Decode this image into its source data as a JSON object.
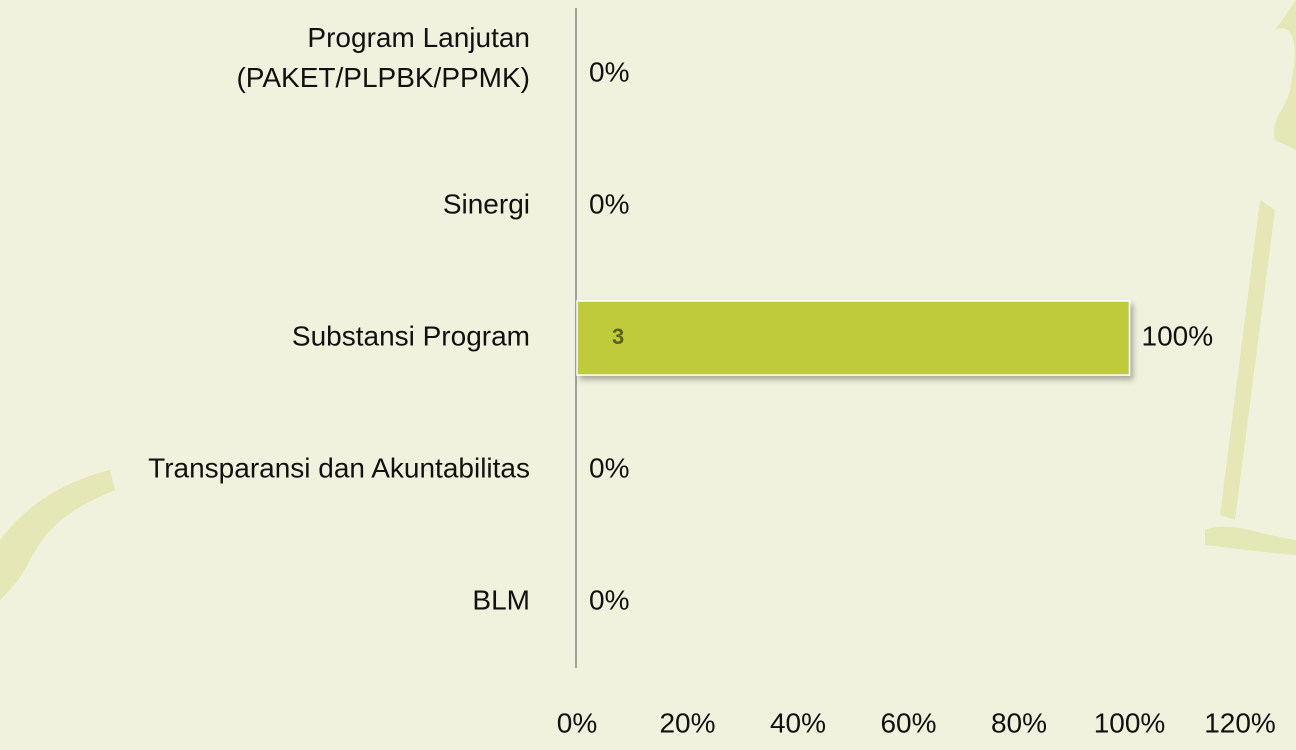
{
  "chart_data": {
    "type": "bar",
    "orientation": "horizontal",
    "categories": [
      "Program Lanjutan (PAKET/PLPBK/PPMK)",
      "Sinergi",
      "Substansi Program",
      "Transparansi dan Akuntabilitas",
      "BLM"
    ],
    "values": [
      0,
      0,
      100,
      0,
      0
    ],
    "value_labels": [
      "0%",
      "0%",
      "100%",
      "0%",
      "0%"
    ],
    "counts": [
      null,
      null,
      3,
      null,
      null
    ],
    "color": "#bfcb3a",
    "xlim": [
      0,
      120
    ],
    "xticks": [
      {
        "value": 0,
        "label": "0%"
      },
      {
        "value": 20,
        "label": "20%"
      },
      {
        "value": 40,
        "label": "40%"
      },
      {
        "value": 60,
        "label": "60%"
      },
      {
        "value": 80,
        "label": "80%"
      },
      {
        "value": 100,
        "label": "100%"
      },
      {
        "value": 120,
        "label": "120%"
      }
    ],
    "grid": false
  }
}
